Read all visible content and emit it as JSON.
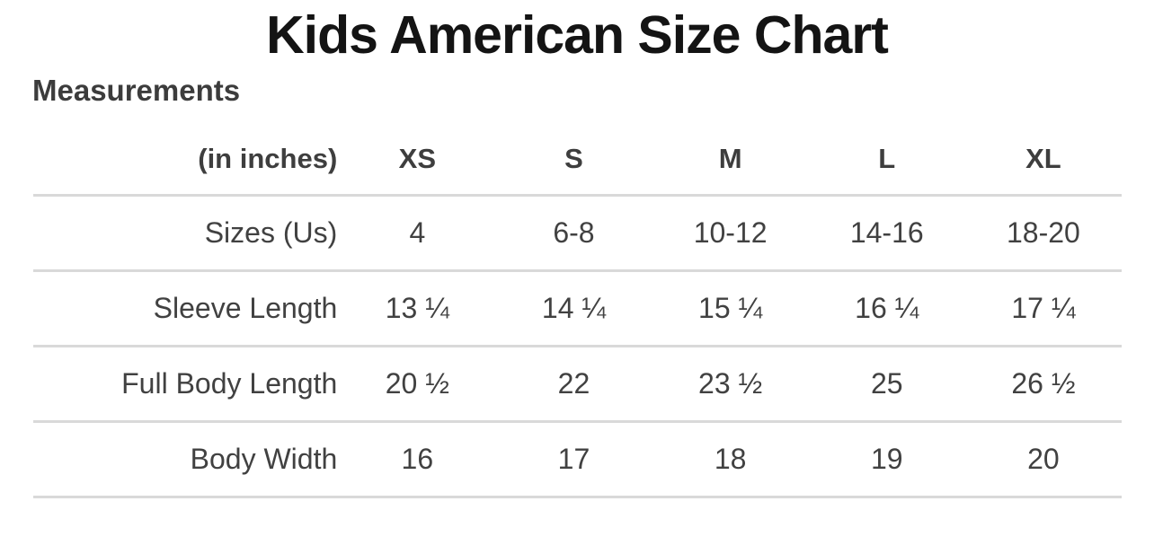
{
  "page": {
    "title": "Kids American Size Chart",
    "section_heading": "Measurements"
  },
  "chart_data": {
    "type": "table",
    "title": "Kids American Size Chart",
    "subtitle": "Measurements",
    "unit_label": "(in inches)",
    "columns": [
      "XS",
      "S",
      "M",
      "L",
      "XL"
    ],
    "rows": [
      {
        "label": "Sizes (Us)",
        "values": [
          "4",
          "6-8",
          "10-12",
          "14-16",
          "18-20"
        ]
      },
      {
        "label": "Sleeve Length",
        "values": [
          "13 ¼",
          "14 ¼",
          "15 ¼",
          "16 ¼",
          "17 ¼"
        ]
      },
      {
        "label": "Full Body Length",
        "values": [
          "20 ½",
          "22",
          "23 ½",
          "25",
          "26 ½"
        ]
      },
      {
        "label": "Body Width",
        "values": [
          "16",
          "17",
          "18",
          "19",
          "20"
        ]
      }
    ]
  },
  "colors": {
    "title_text": "#141414",
    "body_text": "#414141",
    "divider": "#d9d9d9",
    "background": "#ffffff"
  }
}
